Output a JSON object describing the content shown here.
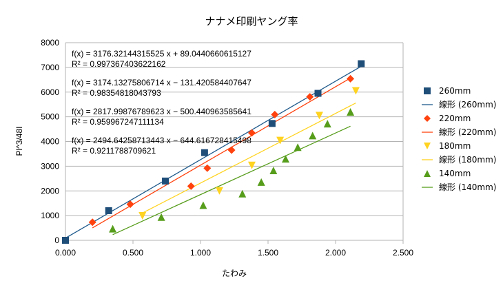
{
  "chart_data": {
    "type": "scatter",
    "title": "ナナメ印刷ヤング率",
    "xlabel": "たわみ",
    "ylabel": "Pl^3/48I",
    "xlim": [
      0,
      2.5
    ],
    "ylim": [
      0,
      8000
    ],
    "xticks": [
      "0.000",
      "0.500",
      "1.000",
      "1.500",
      "2.000",
      "2.500"
    ],
    "yticks": [
      "0",
      "1000",
      "2000",
      "3000",
      "4000",
      "5000",
      "6000",
      "7000",
      "8000"
    ],
    "grid": "horizontal",
    "legend_position": "right",
    "series": [
      {
        "name": "260mm",
        "marker": "square",
        "color": "#1f4e79",
        "points": [
          [
            0.0,
            0
          ],
          [
            0.32,
            1200
          ],
          [
            0.74,
            2400
          ],
          [
            1.03,
            3550
          ],
          [
            1.53,
            4730
          ],
          [
            1.87,
            5950
          ],
          [
            2.19,
            7150
          ]
        ],
        "fit": {
          "label": "線形 (260mm)",
          "slope": 3176.32144315525,
          "intercept": 89.0440660615127,
          "x_range": [
            0.0,
            2.19
          ],
          "color": "#1f5a8c"
        }
      },
      {
        "name": "220mm",
        "marker": "diamond",
        "color": "#ff420e",
        "points": [
          [
            0.2,
            730
          ],
          [
            0.48,
            1460
          ],
          [
            0.93,
            2190
          ],
          [
            1.05,
            2920
          ],
          [
            1.23,
            3650
          ],
          [
            1.38,
            4350
          ],
          [
            1.55,
            5090
          ],
          [
            1.81,
            5810
          ],
          [
            2.11,
            6540
          ]
        ],
        "fit": {
          "label": "線形 (220mm)",
          "slope": 3174.13275806714,
          "intercept": -131.420584407647,
          "x_range": [
            0.2,
            2.11
          ],
          "color": "#ff420e"
        }
      },
      {
        "name": "180mm",
        "marker": "triangle-down",
        "color": "#ffd320",
        "points": [
          [
            0.57,
            990
          ],
          [
            1.14,
            2000
          ],
          [
            1.38,
            3030
          ],
          [
            1.59,
            4040
          ],
          [
            1.88,
            5050
          ],
          [
            2.15,
            6050
          ]
        ],
        "fit": {
          "label": "線形 (180mm)",
          "slope": 2817.99876789623,
          "intercept": -500.440963585641,
          "x_range": [
            0.57,
            2.15
          ],
          "color": "#ffd320"
        }
      },
      {
        "name": "140mm",
        "marker": "triangle-up",
        "color": "#579d1c",
        "points": [
          [
            0.35,
            470
          ],
          [
            0.71,
            940
          ],
          [
            1.02,
            1420
          ],
          [
            1.31,
            1890
          ],
          [
            1.45,
            2360
          ],
          [
            1.54,
            2830
          ],
          [
            1.63,
            3300
          ],
          [
            1.72,
            3770
          ],
          [
            1.83,
            4240
          ],
          [
            1.94,
            4720
          ],
          [
            2.11,
            5200
          ]
        ],
        "fit": {
          "label": "線形 (140mm)",
          "slope": 2494.64258713443,
          "intercept": -644.616728415498,
          "x_range": [
            0.35,
            2.11
          ],
          "color": "#579d1c"
        }
      }
    ],
    "annotations": [
      {
        "line1": "f(x) = 3176.32144315525 x + 89.0440660615127",
        "line2": "R² = 0.997367403622162"
      },
      {
        "line1": "f(x) = 3174.13275806714 x − 131.420584407647",
        "line2": "R² = 0.98354818043793"
      },
      {
        "line1": "f(x) = 2817.99876789623 x − 500.440963585641",
        "line2": "R² = 0.959967247111134"
      },
      {
        "line1": "f(x) = 2494.64258713443 x − 644.616728415498",
        "line2": "R² = 0.9211788709621"
      }
    ]
  }
}
